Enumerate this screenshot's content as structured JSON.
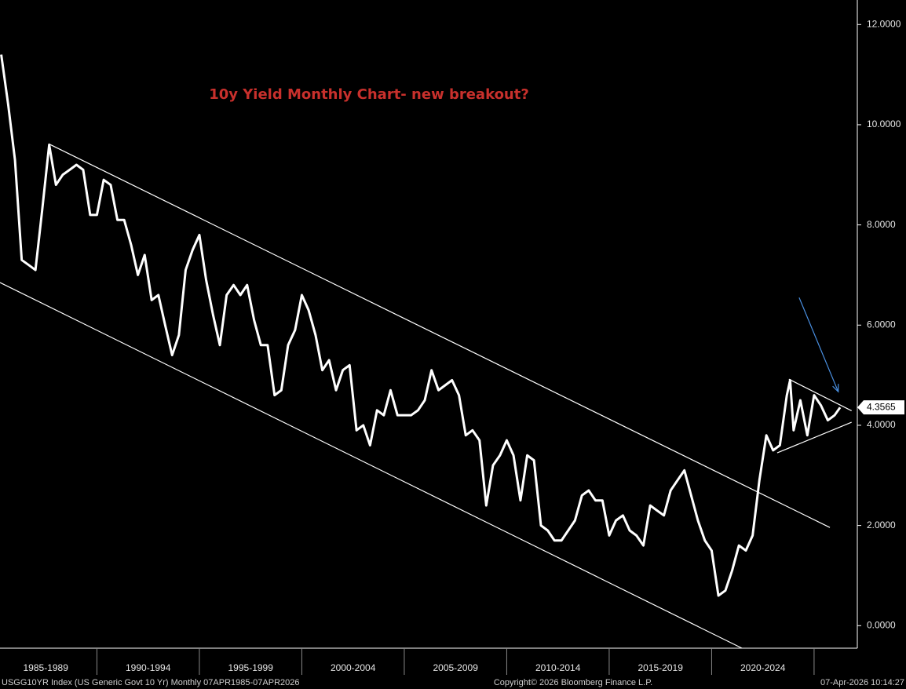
{
  "chart_data": {
    "type": "line",
    "title": "10y Yield Monthly Chart- new breakout?",
    "footer_left": "USGG10YR Index (US Generic Govt 10 Yr) Monthly 07APR1985-07APR2026",
    "footer_center": "Copyright© 2026 Bloomberg Finance L.P.",
    "footer_right": "07-Apr-2026 10:14:27",
    "xlim": [
      1985.27,
      2027.11
    ],
    "ylim": [
      -0.45,
      12.49
    ],
    "xticks": [
      {
        "value": 1987.5,
        "label": "1985-1989"
      },
      {
        "value": 1992.5,
        "label": "1990-1994"
      },
      {
        "value": 1997.5,
        "label": "1995-1999"
      },
      {
        "value": 2002.5,
        "label": "2000-2004"
      },
      {
        "value": 2007.5,
        "label": "2005-2009"
      },
      {
        "value": 2012.5,
        "label": "2010-2014"
      },
      {
        "value": 2017.5,
        "label": "2015-2019"
      },
      {
        "value": 2022.5,
        "label": "2020-2024"
      }
    ],
    "yticks": [
      {
        "value": 0,
        "label": "0.0000"
      },
      {
        "value": 2,
        "label": "2.0000"
      },
      {
        "value": 4,
        "label": "4.0000"
      },
      {
        "value": 6,
        "label": "6.0000"
      },
      {
        "value": 8,
        "label": "8.0000"
      },
      {
        "value": 10,
        "label": "10.0000"
      },
      {
        "value": 12,
        "label": "12.0000"
      }
    ],
    "last_value": 4.3565,
    "series": [
      {
        "color": "#ffffff",
        "x": [
          1985.33,
          1985.67,
          1986.0,
          1986.33,
          1986.67,
          1987.0,
          1987.33,
          1987.67,
          1988.0,
          1988.33,
          1988.67,
          1989.0,
          1989.33,
          1989.67,
          1990.0,
          1990.33,
          1990.67,
          1991.0,
          1991.33,
          1991.67,
          1992.0,
          1992.33,
          1992.67,
          1993.0,
          1993.33,
          1993.67,
          1994.0,
          1994.33,
          1994.67,
          1995.0,
          1995.33,
          1995.67,
          1996.0,
          1996.33,
          1996.67,
          1997.0,
          1997.33,
          1997.67,
          1998.0,
          1998.33,
          1998.67,
          1999.0,
          1999.33,
          1999.67,
          2000.0,
          2000.33,
          2000.67,
          2001.0,
          2001.33,
          2001.67,
          2002.0,
          2002.33,
          2002.67,
          2003.0,
          2003.33,
          2003.67,
          2004.0,
          2004.33,
          2004.67,
          2005.0,
          2005.33,
          2005.67,
          2006.0,
          2006.33,
          2006.67,
          2007.0,
          2007.33,
          2007.67,
          2008.0,
          2008.33,
          2008.67,
          2009.0,
          2009.33,
          2009.67,
          2010.0,
          2010.33,
          2010.67,
          2011.0,
          2011.33,
          2011.67,
          2012.0,
          2012.33,
          2012.67,
          2013.0,
          2013.33,
          2013.67,
          2014.0,
          2014.33,
          2014.67,
          2015.0,
          2015.33,
          2015.67,
          2016.0,
          2016.33,
          2016.67,
          2017.0,
          2017.33,
          2017.67,
          2018.0,
          2018.33,
          2018.67,
          2019.0,
          2019.33,
          2019.67,
          2020.0,
          2020.33,
          2020.67,
          2021.0,
          2021.33,
          2021.67,
          2022.0,
          2022.33,
          2022.67,
          2023.0,
          2023.33,
          2023.67,
          2023.83,
          2024.0,
          2024.33,
          2024.67,
          2025.0,
          2025.33,
          2025.67,
          2026.0,
          2026.27
        ],
        "values": [
          11.4,
          10.4,
          9.3,
          7.3,
          7.2,
          7.1,
          8.3,
          9.6,
          8.8,
          9.0,
          9.1,
          9.2,
          9.1,
          8.2,
          8.2,
          8.9,
          8.8,
          8.1,
          8.1,
          7.6,
          7.0,
          7.4,
          6.5,
          6.6,
          6.0,
          5.4,
          5.8,
          7.1,
          7.5,
          7.8,
          6.9,
          6.2,
          5.6,
          6.6,
          6.8,
          6.6,
          6.8,
          6.1,
          5.6,
          5.6,
          4.6,
          4.7,
          5.6,
          5.9,
          6.6,
          6.3,
          5.8,
          5.1,
          5.3,
          4.7,
          5.1,
          5.2,
          3.9,
          4.0,
          3.6,
          4.3,
          4.2,
          4.7,
          4.2,
          4.2,
          4.2,
          4.3,
          4.5,
          5.1,
          4.7,
          4.8,
          4.9,
          4.6,
          3.8,
          3.9,
          3.7,
          2.4,
          3.2,
          3.4,
          3.7,
          3.4,
          2.5,
          3.4,
          3.3,
          2.0,
          1.9,
          1.7,
          1.7,
          1.9,
          2.1,
          2.6,
          2.7,
          2.5,
          2.5,
          1.8,
          2.1,
          2.2,
          1.9,
          1.8,
          1.6,
          2.4,
          2.3,
          2.2,
          2.7,
          2.9,
          3.1,
          2.6,
          2.1,
          1.7,
          1.5,
          0.6,
          0.7,
          1.1,
          1.6,
          1.5,
          1.8,
          2.9,
          3.8,
          3.5,
          3.6,
          4.6,
          4.9,
          3.9,
          4.5,
          3.8,
          4.6,
          4.4,
          4.1,
          4.2,
          4.3565
        ]
      }
    ],
    "trendlines": [
      {
        "x": [
          1987.64,
          2025.77
        ],
        "y": [
          9.62,
          1.96
        ]
      },
      {
        "x": [
          1985.27,
          2021.48
        ],
        "y": [
          6.85,
          -0.45
        ]
      },
      {
        "x": [
          2023.77,
          2026.83
        ],
        "y": [
          4.92,
          4.29
        ]
      },
      {
        "x": [
          2023.2,
          2026.83
        ],
        "y": [
          3.45,
          4.06
        ]
      }
    ],
    "arrow": {
      "x": [
        2024.27,
        2026.18
      ],
      "y": [
        6.55,
        4.67
      ],
      "color": "#4a90e2"
    }
  }
}
